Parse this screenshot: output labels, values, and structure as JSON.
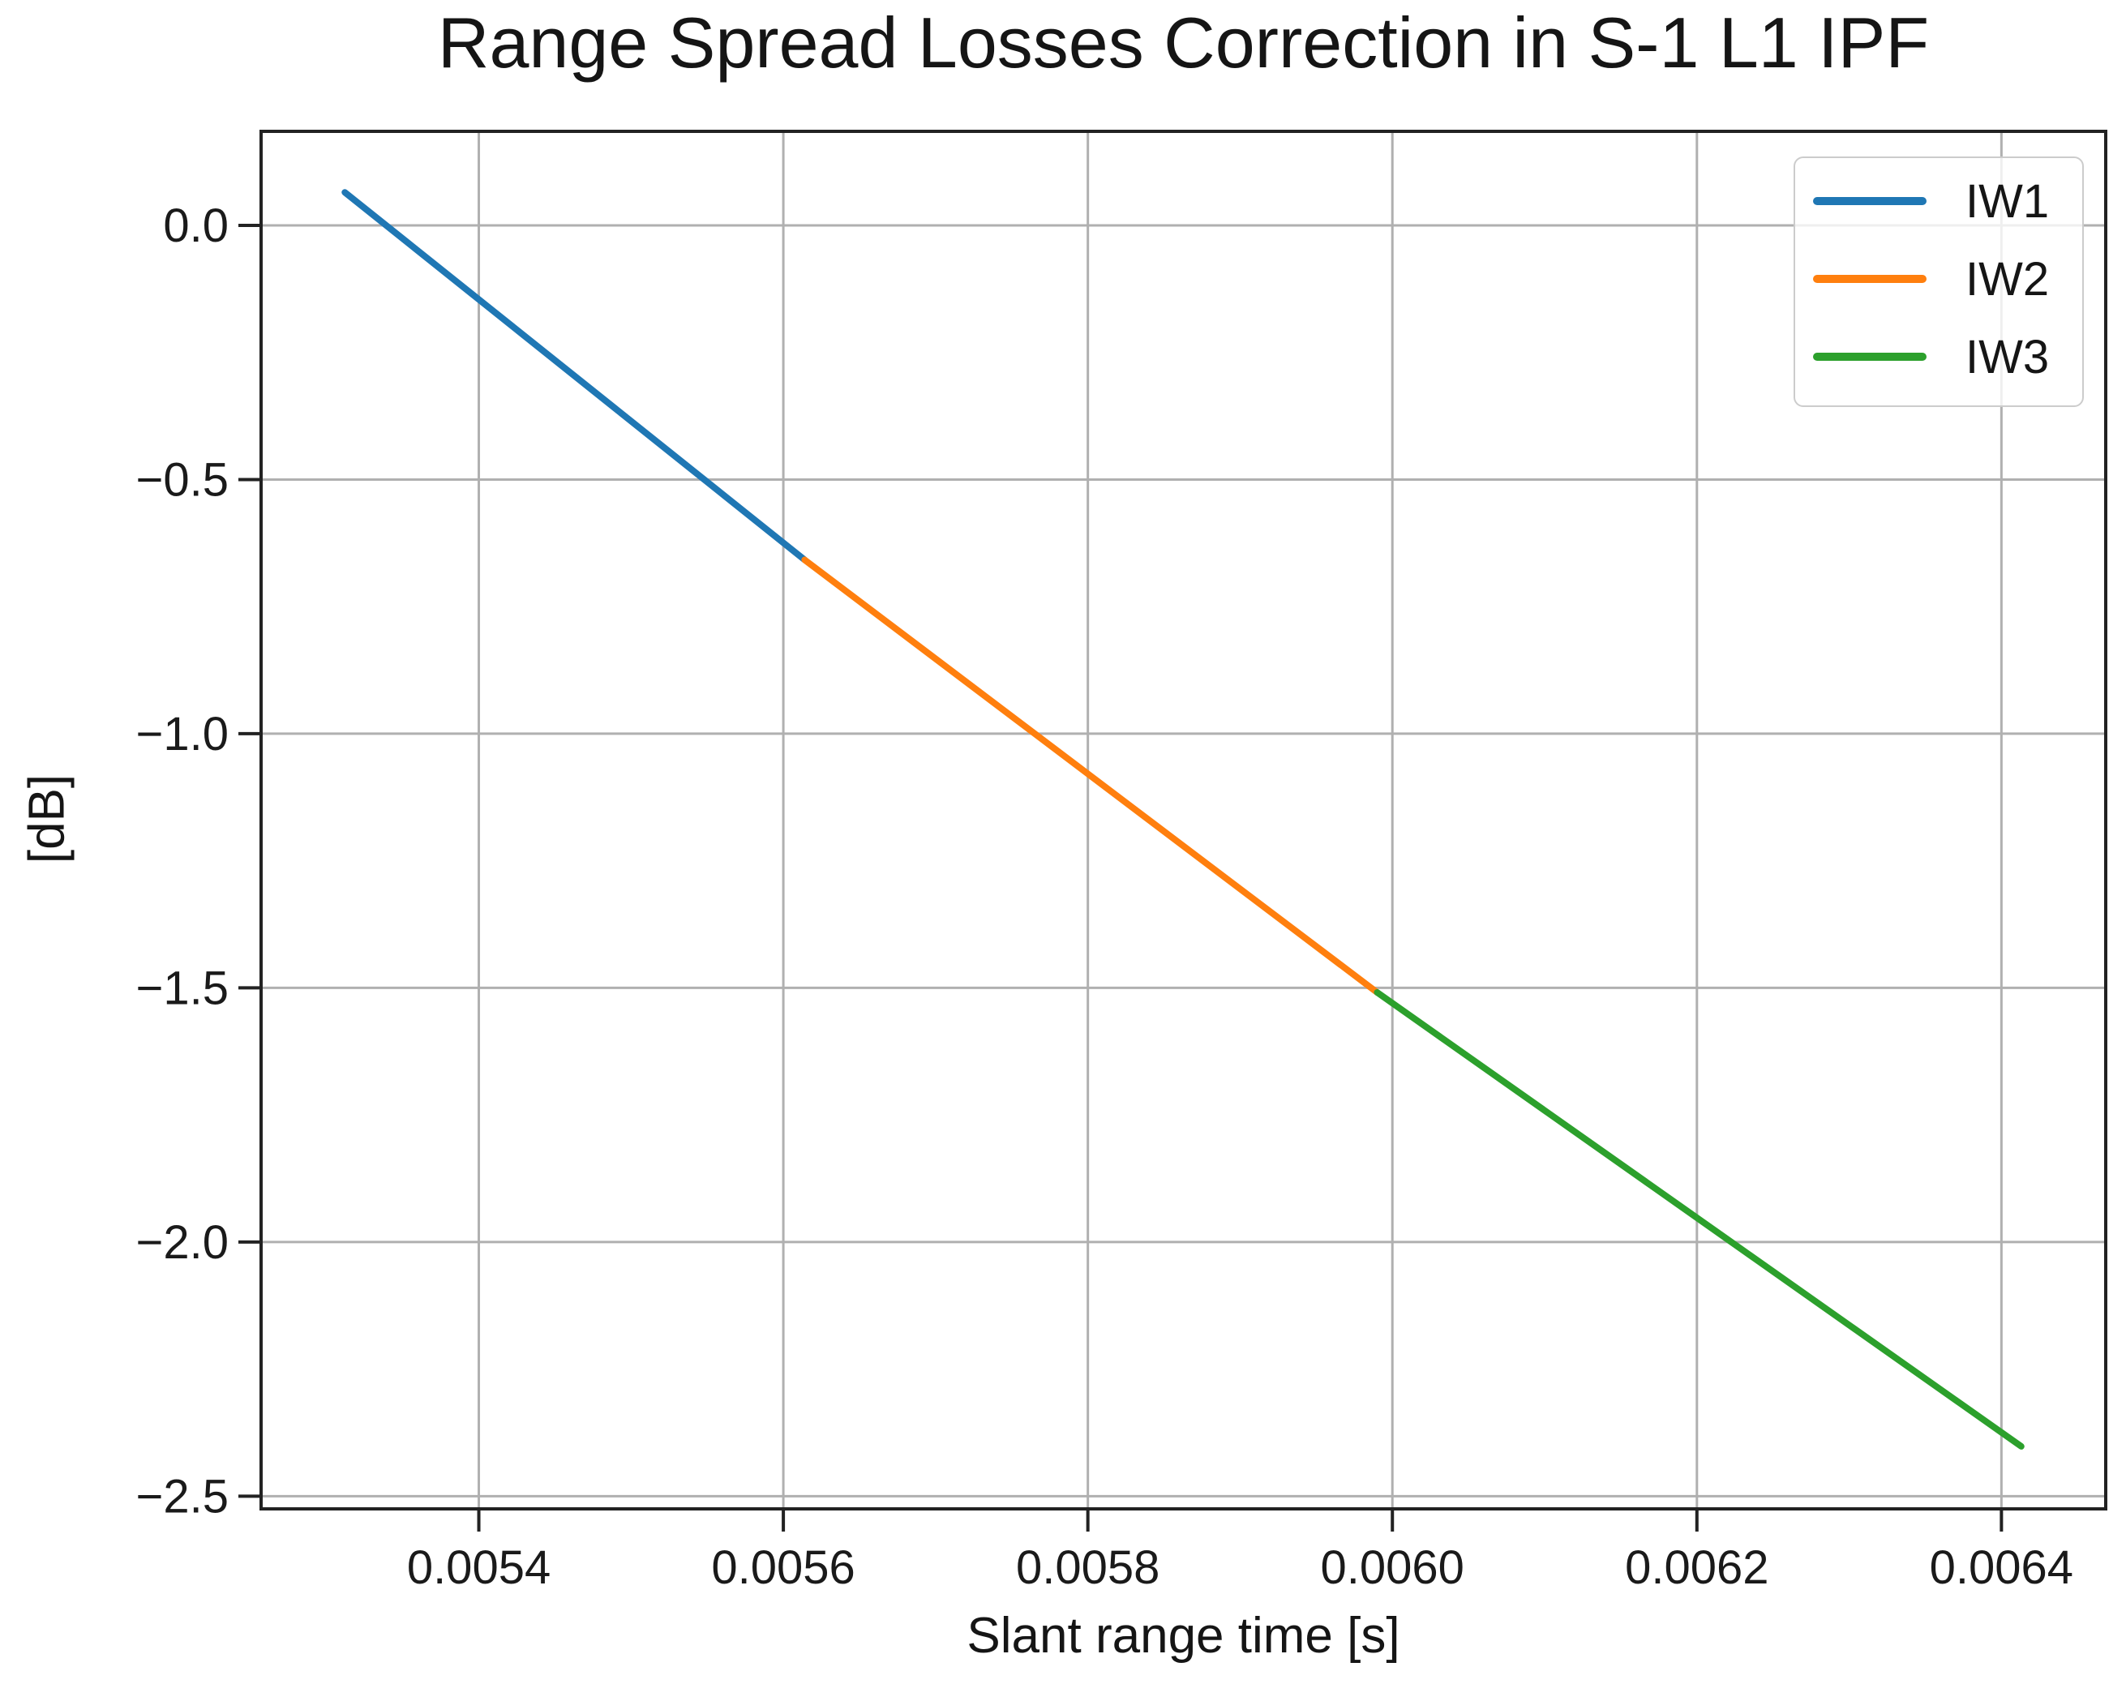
{
  "chart_data": {
    "type": "line",
    "title": "Range Spread Losses Correction in S-1 L1 IPF",
    "xlabel": "Slant range time [s]",
    "ylabel": "[dB]",
    "xlim": [
      0.005257,
      0.0064685
    ],
    "ylim": [
      -2.525,
      0.185
    ],
    "grid": true,
    "legend": {
      "position": "upper right",
      "entries": [
        "IW1",
        "IW2",
        "IW3"
      ]
    },
    "x_ticks": {
      "values": [
        0.0054,
        0.0056,
        0.0058,
        0.006,
        0.0062,
        0.0064
      ],
      "labels": [
        "0.0054",
        "0.0056",
        "0.0058",
        "0.0060",
        "0.0062",
        "0.0064"
      ]
    },
    "y_ticks": {
      "values": [
        0.0,
        -0.5,
        -1.0,
        -1.5,
        -2.0,
        -2.5
      ],
      "labels": [
        "0.0",
        "−0.5",
        "−1.0",
        "−1.5",
        "−2.0",
        "−2.5"
      ]
    },
    "series": [
      {
        "name": "IW1",
        "color": "#1f77b4",
        "x": [
          0.005312,
          0.005614
        ],
        "y": [
          0.065,
          -0.658
        ]
      },
      {
        "name": "IW2",
        "color": "#ff7f0e",
        "x": [
          0.005614,
          0.00599
        ],
        "y": [
          -0.658,
          -1.509
        ]
      },
      {
        "name": "IW3",
        "color": "#2ca02c",
        "x": [
          0.00599,
          0.006413
        ],
        "y": [
          -1.509,
          -2.402
        ]
      }
    ],
    "colors": {
      "gridline": "#b0b0b0",
      "spine": "#222222",
      "text": "#1a1a1a",
      "background": "#ffffff"
    }
  }
}
